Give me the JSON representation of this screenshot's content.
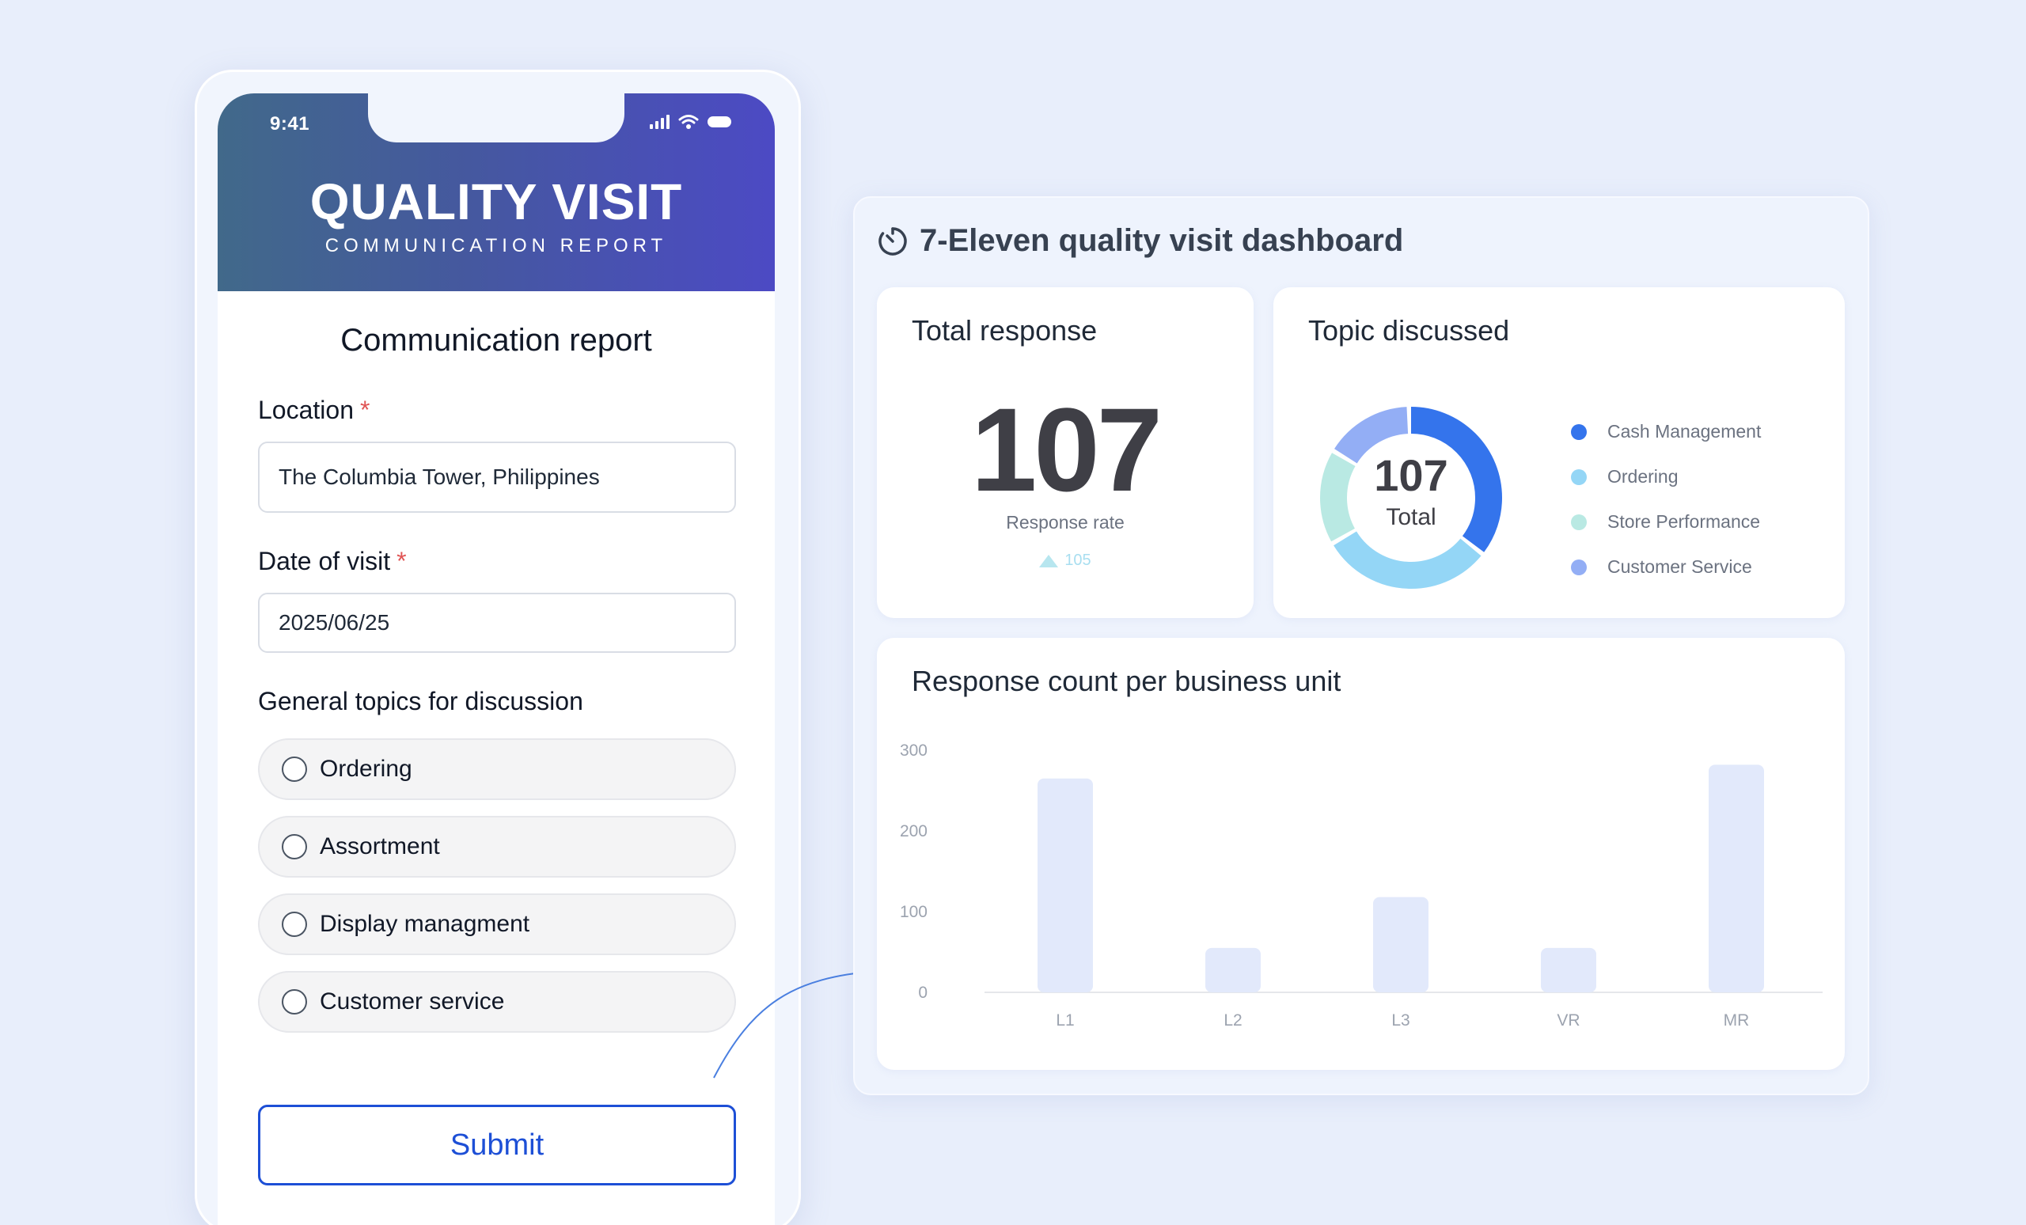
{
  "phone": {
    "status_time": "9:41",
    "app_title": "QUALITY VISIT",
    "app_subtitle": "COMMUNICATION REPORT",
    "form_title": "Communication report",
    "location": {
      "label": "Location",
      "required_mark": "*",
      "value": "The Columbia Tower, Philippines"
    },
    "date": {
      "label": "Date of visit",
      "required_mark": "*",
      "value": "2025/06/25"
    },
    "topics": {
      "label": "General topics for discussion",
      "options": [
        "Ordering",
        "Assortment",
        "Display managment",
        "Customer service"
      ]
    },
    "submit_label": "Submit"
  },
  "dashboard": {
    "title": "7-Eleven quality visit dashboard",
    "total_response": {
      "title": "Total response",
      "value": "107",
      "label": "Response rate",
      "trend_value": "105"
    },
    "topic_discussed": {
      "title": "Topic discussed",
      "center_value": "107",
      "center_label": "Total",
      "legend": [
        {
          "label": "Cash Management",
          "color": "#3474ec"
        },
        {
          "label": "Ordering",
          "color": "#94d6f6"
        },
        {
          "label": "Store Performance",
          "color": "#b9e9e3"
        },
        {
          "label": "Customer Service",
          "color": "#93aef5"
        }
      ]
    },
    "response_chart": {
      "title": "Response count per business unit"
    }
  },
  "chart_data": [
    {
      "type": "pie",
      "center_value": "107",
      "center_label": "Total",
      "categories": [
        "Cash Management",
        "Ordering",
        "Store Performance",
        "Customer Service"
      ],
      "values": [
        36,
        31,
        17,
        16
      ],
      "colors": [
        "#3474ec",
        "#94d6f6",
        "#b9e9e3",
        "#93aef5"
      ]
    },
    {
      "type": "bar",
      "title": "Response count per business unit",
      "categories": [
        "L1",
        "L2",
        "L3",
        "VR",
        "MR"
      ],
      "values": [
        265,
        55,
        118,
        55,
        282
      ],
      "ylim": [
        0,
        300
      ],
      "yticks": [
        0,
        100,
        200,
        300
      ],
      "bar_color": "#e2e9fb",
      "grid": false
    }
  ]
}
